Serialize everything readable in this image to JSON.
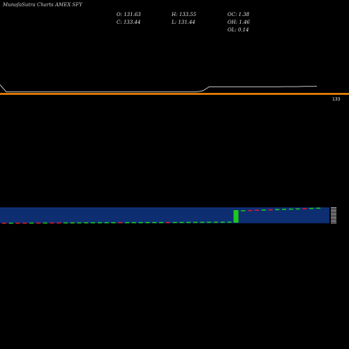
{
  "header": {
    "brand": "MunafaSutra Charts AMEX SFY",
    "o": "O: 131.63",
    "h": "H: 133.55",
    "oc": "OC: 1.38",
    "c": "C: 133.44",
    "l": "L: 131.44",
    "oh": "OH: 1.46",
    "ol": "OL: 0.14"
  },
  "chart_data": {
    "type": "line",
    "title": "",
    "xlabel": "",
    "ylabel": "",
    "grid": false,
    "series": [
      {
        "values": [
          133.9,
          133.2,
          133.2,
          133.2,
          133.2,
          133.2,
          133.2,
          133.2,
          133.2,
          133.2,
          133.2,
          133.2,
          133.2,
          133.2,
          133.2,
          133.2,
          133.2,
          133.2,
          133.2,
          133.2,
          133.2,
          133.2,
          133.2,
          133.2,
          133.2,
          133.2,
          133.2,
          133.2,
          133.2,
          133.2,
          133.2,
          133.2,
          133.3,
          133.7,
          133.7,
          133.7,
          133.7,
          133.7,
          133.7,
          133.7,
          133.7,
          133.7,
          133.7,
          133.7,
          133.7,
          133.72,
          133.72,
          133.72,
          133.74,
          133.74,
          133.75
        ]
      },
      {
        "values": [
          133.0,
          133.0,
          133.0,
          133.0,
          133.0,
          133.0,
          133.0,
          133.0,
          133.0,
          133.0,
          133.0,
          133.0,
          133.0,
          133.0,
          133.0,
          133.0,
          133.0,
          133.0,
          133.0,
          133.0,
          133.0,
          133.0,
          133.0,
          133.0,
          133.0,
          133.0,
          133.0,
          133.0,
          133.0,
          133.0,
          133.0,
          133.0,
          133.0,
          133.0,
          133.0,
          133.0,
          133.0,
          133.0,
          133.0,
          133.0,
          133.0,
          133.0,
          133.0,
          133.0,
          133.0,
          133.0,
          133.0,
          133.0,
          133.0,
          133.0,
          133.0
        ]
      }
    ],
    "price_label": "133",
    "volume": {
      "type": "bar",
      "values": [
        1,
        1,
        1,
        1,
        1,
        1,
        1,
        1,
        1,
        1,
        1,
        1,
        1,
        1,
        1,
        1,
        1,
        1,
        1,
        1,
        1,
        1,
        1,
        1,
        1,
        1,
        1,
        1,
        1,
        1,
        1,
        1,
        1,
        1,
        1,
        1,
        1,
        1,
        1,
        1,
        1,
        1,
        1,
        1,
        1,
        1,
        1
      ],
      "direction": [
        "down",
        "up",
        "down",
        "down",
        "up",
        "down",
        "up",
        "down",
        "down",
        "up",
        "up",
        "up",
        "up",
        "up",
        "up",
        "up",
        "up",
        "down",
        "up",
        "up",
        "up",
        "up",
        "up",
        "up",
        "down",
        "up",
        "up",
        "up",
        "up",
        "up",
        "up",
        "up",
        "up",
        "up",
        "up",
        "up",
        "down",
        "down",
        "up",
        "down",
        "up",
        "up",
        "up",
        "up",
        "down",
        "up",
        "up"
      ],
      "spike": 18
    },
    "colors": {
      "line": "#c7c7c7",
      "ma": "#ff8c00",
      "up": "#1ec81e",
      "down": "#e0192d",
      "panel": "#0b2a6b",
      "panel_lines": "#2a55aa"
    }
  }
}
